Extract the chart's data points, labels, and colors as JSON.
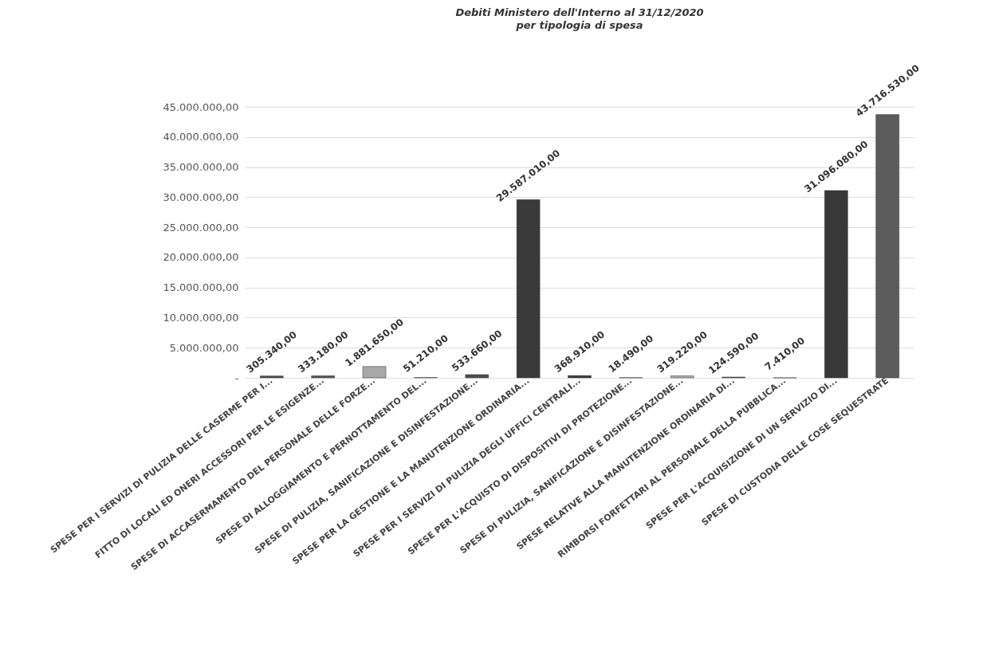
{
  "chart_data": {
    "type": "bar",
    "title": "Debiti Ministero dell'Interno al 31/12/2020",
    "subtitle": "per tipologia di spesa",
    "categories": [
      "SPESE PER I SERVIZI DI PULIZIA DELLE CASERME PER I...",
      "FITTO DI LOCALI ED ONERI ACCESSORI PER LE ESIGENZE...",
      "SPESE DI ACCASERMAMENTO DEL PERSONALE DELLE FORZE...",
      "SPESE DI ALLOGGIAMENTO E PERNOTTAMENTO DEL...",
      "SPESE DI PULIZIA, SANIFICAZIONE E DISINFESTAZIONE...",
      "SPESE PER LA GESTIONE E LA MANUTENZIONE ORDINARIA...",
      "SPESE PER I SERVIZI DI PULIZIA DEGLI UFFICI CENTRALI...",
      "SPESE PER L'ACQUISTO DI DISPOSITIVI DI PROTEZIONE...",
      "SPESE DI PULIZIA, SANIFICAZIONE E DISINFESTAZIONE...",
      "SPESE RELATIVE ALLA MANUTENZIONE ORDINARIA DI...",
      "RIMBORSI FORFETTARI AL PERSONALE DELLA PUBBLICA...",
      "SPESE PER L'ACQUISIZIONE DI UN SERVIZIO DI...",
      "SPESE DI CUSTODIA DELLE COSE SEQUESTRATE"
    ],
    "values": [
      305340,
      333180,
      1881650,
      51210,
      533660,
      29587010,
      368910,
      18490,
      319220,
      124590,
      7410,
      31096080,
      43716530
    ],
    "value_labels": [
      "305.340,00",
      "333.180,00",
      "1.881.650,00",
      "51.210,00",
      "533.660,00",
      "29.587.010,00",
      "368.910,00",
      "18.490,00",
      "319.220,00",
      "124.590,00",
      "7.410,00",
      "31.096.080,00",
      "43.716.530,00"
    ],
    "colors": [
      "#505050",
      "#555555",
      "#a8a8a8",
      "#8a8a8a",
      "#4e4e4e",
      "#3a3a3a",
      "#3a3a3a",
      "#333333",
      "#b0b0b0",
      "#454545",
      "#8c8c8c",
      "#383838",
      "#5c5c5c"
    ],
    "ylim": [
      0,
      45000000
    ],
    "yticks": [
      {
        "value": 0,
        "label": "-"
      },
      {
        "value": 5000000,
        "label": "5.000.000,00"
      },
      {
        "value": 10000000,
        "label": "10.000.000,00"
      },
      {
        "value": 15000000,
        "label": "15.000.000,00"
      },
      {
        "value": 20000000,
        "label": "20.000.000,00"
      },
      {
        "value": 25000000,
        "label": "25.000.000,00"
      },
      {
        "value": 30000000,
        "label": "30.000.000,00"
      },
      {
        "value": 35000000,
        "label": "35.000.000,00"
      },
      {
        "value": 40000000,
        "label": "40.000.000,00"
      },
      {
        "value": 45000000,
        "label": "45.000.000,00"
      }
    ],
    "grid": "y",
    "legend": false
  }
}
